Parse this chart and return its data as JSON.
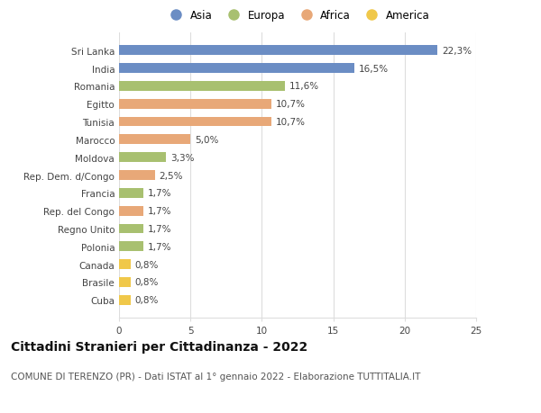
{
  "categories": [
    "Sri Lanka",
    "India",
    "Romania",
    "Egitto",
    "Tunisia",
    "Marocco",
    "Moldova",
    "Rep. Dem. d/Congo",
    "Francia",
    "Rep. del Congo",
    "Regno Unito",
    "Polonia",
    "Canada",
    "Brasile",
    "Cuba"
  ],
  "values": [
    22.3,
    16.5,
    11.6,
    10.7,
    10.7,
    5.0,
    3.3,
    2.5,
    1.7,
    1.7,
    1.7,
    1.7,
    0.8,
    0.8,
    0.8
  ],
  "labels": [
    "22,3%",
    "16,5%",
    "11,6%",
    "10,7%",
    "10,7%",
    "5,0%",
    "3,3%",
    "2,5%",
    "1,7%",
    "1,7%",
    "1,7%",
    "1,7%",
    "0,8%",
    "0,8%",
    "0,8%"
  ],
  "continents": [
    "Asia",
    "Asia",
    "Europa",
    "Africa",
    "Africa",
    "Africa",
    "Europa",
    "Africa",
    "Europa",
    "Africa",
    "Europa",
    "Europa",
    "America",
    "America",
    "America"
  ],
  "continent_colors": {
    "Asia": "#6b8dc4",
    "Europa": "#a8c070",
    "Africa": "#e8a878",
    "America": "#f0c84a"
  },
  "legend_order": [
    "Asia",
    "Europa",
    "Africa",
    "America"
  ],
  "title": "Cittadini Stranieri per Cittadinanza - 2022",
  "subtitle": "COMUNE DI TERENZO (PR) - Dati ISTAT al 1° gennaio 2022 - Elaborazione TUTTITALIA.IT",
  "xlim": [
    0,
    25
  ],
  "xticks": [
    0,
    5,
    10,
    15,
    20,
    25
  ],
  "background_color": "#ffffff",
  "grid_color": "#dddddd",
  "bar_height": 0.55,
  "title_fontsize": 10,
  "subtitle_fontsize": 7.5,
  "tick_fontsize": 7.5,
  "label_fontsize": 7.5,
  "legend_fontsize": 8.5
}
